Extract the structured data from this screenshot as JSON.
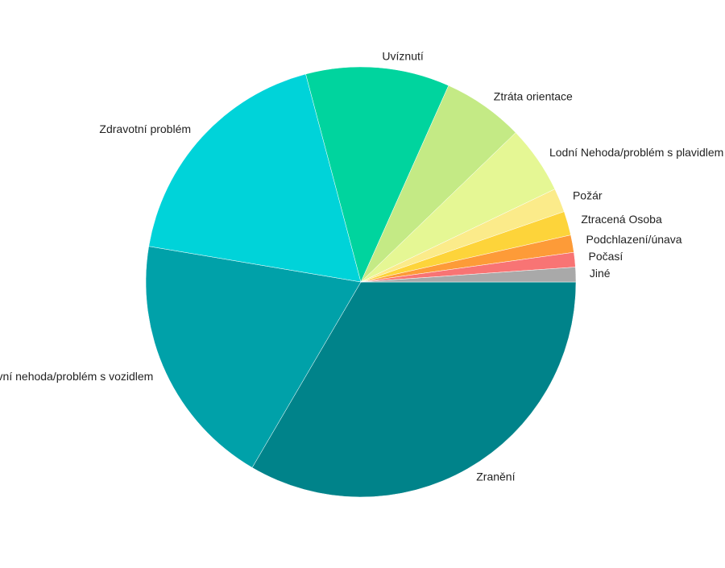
{
  "chart_data": {
    "type": "pie",
    "categories": [
      "Zranění",
      "Dopravní nehoda/problém s vozidlem",
      "Zdravotní problém",
      "Uvíznutí",
      "Ztráta orientace",
      "Lodní Nehoda/problém s plavidlem",
      "Požár",
      "Ztracená Osoba",
      "Podchlazení/únava",
      "Počasí",
      "Jiné"
    ],
    "values": [
      33.4,
      19.2,
      18.2,
      10.8,
      6.1,
      5.1,
      1.8,
      1.8,
      1.3,
      1.1,
      1.1
    ],
    "colors": [
      "#00838a",
      "#00a1a9",
      "#00d3d9",
      "#00d49e",
      "#c4ea85",
      "#e5f794",
      "#fbeb8a",
      "#fdd43a",
      "#fd9b38",
      "#f87474",
      "#a9a9a9"
    ]
  }
}
